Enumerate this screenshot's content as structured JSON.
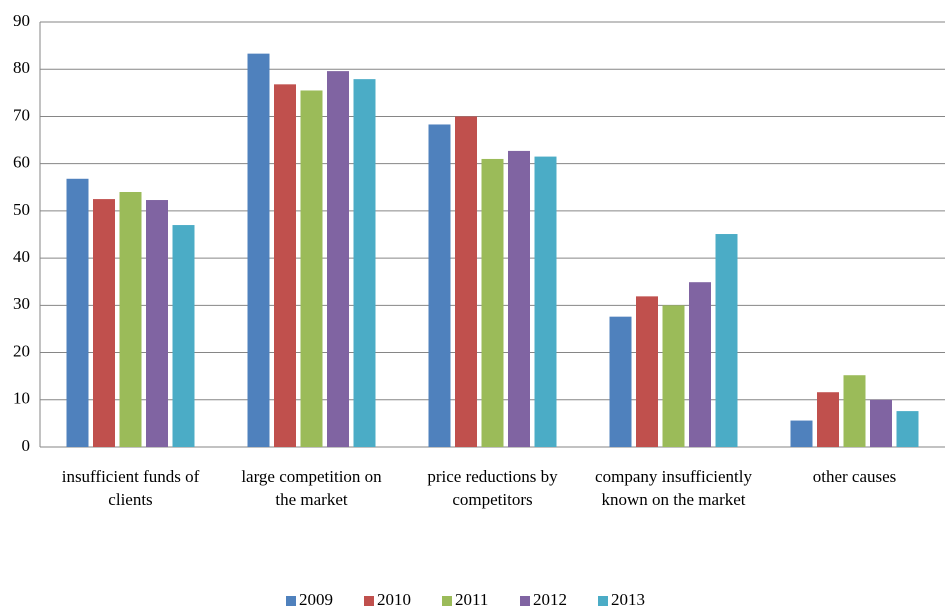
{
  "chart_data": {
    "type": "bar",
    "categories": [
      "insufficient funds of clients",
      "large competition on the market",
      "price reductions by competitors",
      "company insufficiently known on the market",
      "other causes"
    ],
    "series": [
      {
        "name": "2009",
        "color": "#4f81bd",
        "values": [
          56.8,
          83.3,
          68.3,
          27.6,
          5.6
        ]
      },
      {
        "name": "2010",
        "color": "#c0504d",
        "values": [
          52.5,
          76.8,
          70,
          31.9,
          11.6
        ]
      },
      {
        "name": "2011",
        "color": "#9bbb59",
        "values": [
          54,
          75.5,
          61,
          30,
          15.2
        ]
      },
      {
        "name": "2012",
        "color": "#8064a2",
        "values": [
          52.3,
          79.6,
          62.7,
          34.9,
          10
        ]
      },
      {
        "name": "2013",
        "color": "#4bacc6",
        "values": [
          47,
          77.9,
          61.5,
          45.1,
          7.6
        ]
      }
    ],
    "ylim": [
      0,
      90
    ],
    "yticks": [
      0,
      10,
      20,
      30,
      40,
      50,
      60,
      70,
      80,
      90
    ],
    "grid": true,
    "legend": "bottom"
  }
}
